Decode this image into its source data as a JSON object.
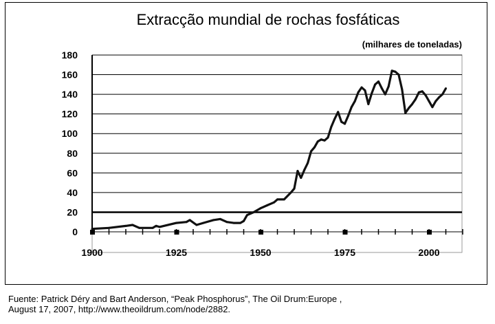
{
  "chart_data": {
    "type": "line",
    "title": "Extracção mundial de rochas fosfáticas",
    "unit_label": "(milhares de toneladas)",
    "xlabel": "",
    "ylabel": "",
    "xlim": [
      1900,
      2010
    ],
    "ylim": [
      0,
      180
    ],
    "grid": true,
    "legend": "none",
    "x_ticks": [
      "1900",
      "1925",
      "1950",
      "1975",
      "2000"
    ],
    "y_ticks": [
      "0",
      "20",
      "40",
      "60",
      "80",
      "100",
      "120",
      "140",
      "160",
      "180"
    ],
    "line_color": "#111111",
    "x": [
      1900,
      1905,
      1910,
      1912,
      1914,
      1918,
      1919,
      1920,
      1925,
      1928,
      1929,
      1931,
      1933,
      1936,
      1938,
      1940,
      1942,
      1944,
      1945,
      1946,
      1948,
      1950,
      1952,
      1954,
      1955,
      1957,
      1959,
      1960,
      1961,
      1962,
      1963,
      1964,
      1965,
      1966,
      1967,
      1968,
      1969,
      1970,
      1971,
      1972,
      1973,
      1974,
      1975,
      1976,
      1977,
      1978,
      1979,
      1980,
      1981,
      1982,
      1983,
      1984,
      1985,
      1986,
      1987,
      1988,
      1989,
      1990,
      1991,
      1992,
      1993,
      1994,
      1995,
      1996,
      1997,
      1998,
      1999,
      2000,
      2001,
      2002,
      2003,
      2004,
      2005
    ],
    "y": [
      3,
      4,
      6,
      7,
      4,
      4,
      6,
      5,
      9,
      10,
      12,
      7,
      9,
      12,
      13,
      10,
      9,
      9,
      11,
      17,
      20,
      24,
      27,
      30,
      33,
      33,
      40,
      44,
      62,
      55,
      63,
      70,
      82,
      86,
      92,
      94,
      93,
      96,
      107,
      115,
      122,
      112,
      110,
      118,
      127,
      133,
      142,
      147,
      144,
      130,
      141,
      150,
      153,
      146,
      140,
      148,
      164,
      163,
      160,
      145,
      121,
      126,
      130,
      135,
      142,
      143,
      139,
      133,
      127,
      133,
      137,
      140,
      146
    ]
  },
  "source": {
    "line1": "Fuente: Patrick Déry and Bart Anderson, “Peak Phosphorus”, The Oil Drum:Europe ,",
    "line2": "August 17, 2007, http://www.theoildrum.com/node/2882."
  }
}
